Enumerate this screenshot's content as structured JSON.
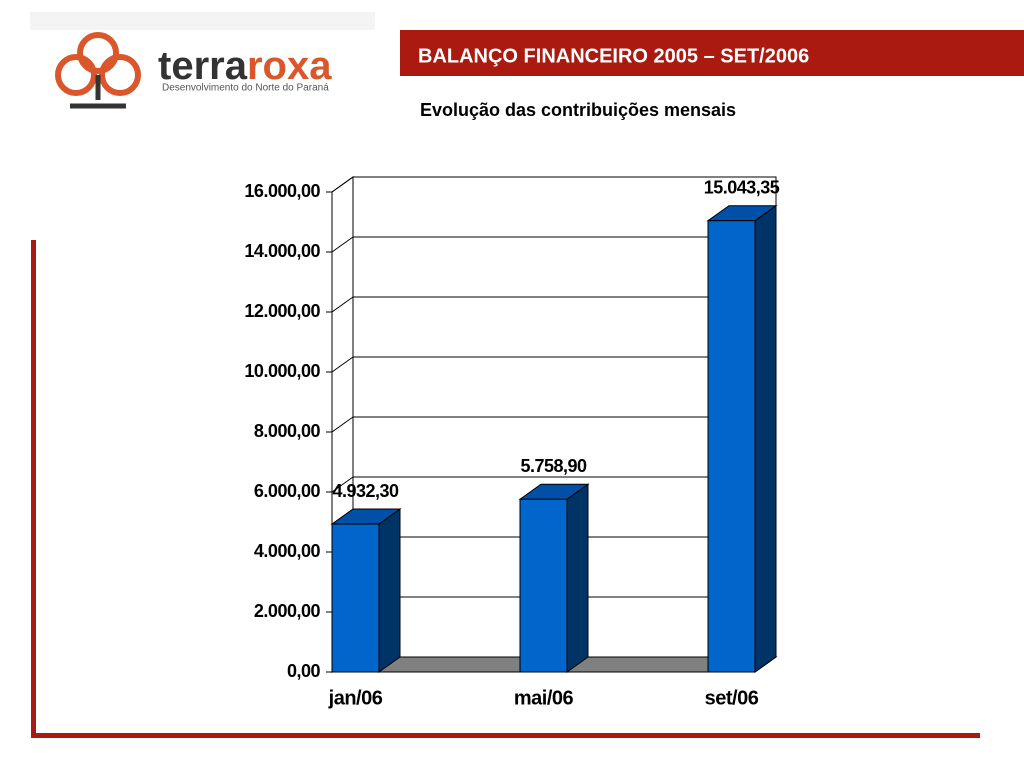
{
  "header": {
    "title": "BALANÇO FINANCEIRO 2005 – SET/2006"
  },
  "logo": {
    "name": [
      "terra",
      "roxa"
    ],
    "tagline": "Desenvolvimento do Norte do Paraná"
  },
  "chart_data": {
    "type": "bar3d",
    "title": "Evolução das contribuições mensais",
    "categories": [
      "jan/06",
      "mai/06",
      "set/06"
    ],
    "values": [
      4932.3,
      5758.9,
      15043.35
    ],
    "value_labels": [
      "4.932,30",
      "5.758,90",
      "15.043,35"
    ],
    "color": "#0066cc",
    "ylim": [
      0,
      16000
    ],
    "yticks": [
      {
        "value": 0,
        "label": "0,00"
      },
      {
        "value": 2000,
        "label": "2.000,00"
      },
      {
        "value": 4000,
        "label": "4.000,00"
      },
      {
        "value": 6000,
        "label": "6.000,00"
      },
      {
        "value": 8000,
        "label": "8.000,00"
      },
      {
        "value": 10000,
        "label": "10.000,00"
      },
      {
        "value": 12000,
        "label": "12.000,00"
      },
      {
        "value": 14000,
        "label": "14.000,00"
      },
      {
        "value": 16000,
        "label": "16.000,00"
      }
    ],
    "grid": true
  }
}
